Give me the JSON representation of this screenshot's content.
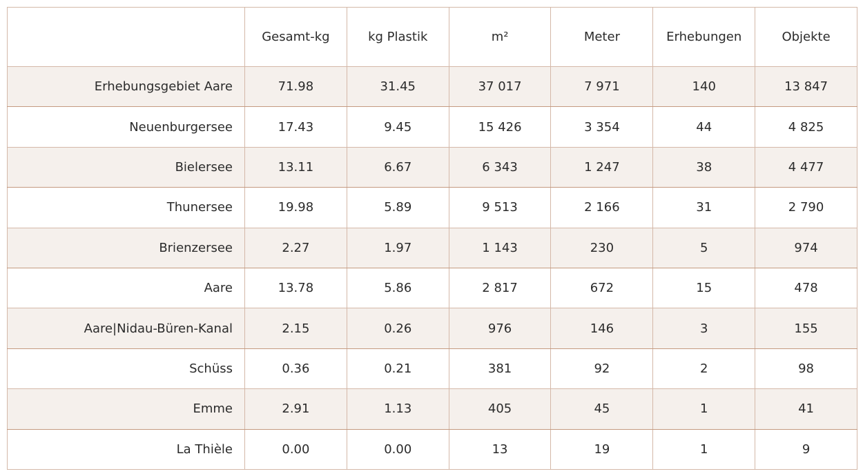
{
  "table": {
    "headers": [
      "",
      "Gesamt-kg",
      "kg Plastik",
      "m²",
      "Meter",
      "Erhebungen",
      "Objekte"
    ],
    "rows": [
      {
        "label": "Erhebungsgebiet Aare",
        "values": [
          "71.98",
          "31.45",
          "37 017",
          "7 971",
          "140",
          "13 847"
        ]
      },
      {
        "label": "Neuenburgersee",
        "values": [
          "17.43",
          "9.45",
          "15 426",
          "3 354",
          "44",
          "4 825"
        ]
      },
      {
        "label": "Bielersee",
        "values": [
          "13.11",
          "6.67",
          "6 343",
          "1 247",
          "38",
          "4 477"
        ]
      },
      {
        "label": "Thunersee",
        "values": [
          "19.98",
          "5.89",
          "9 513",
          "2 166",
          "31",
          "2 790"
        ]
      },
      {
        "label": "Brienzersee",
        "values": [
          "2.27",
          "1.97",
          "1 143",
          "230",
          "5",
          "974"
        ]
      },
      {
        "label": "Aare",
        "values": [
          "13.78",
          "5.86",
          "2 817",
          "672",
          "15",
          "478"
        ]
      },
      {
        "label": "Aare|Nidau-Büren-Kanal",
        "values": [
          "2.15",
          "0.26",
          "976",
          "146",
          "3",
          "155"
        ]
      },
      {
        "label": "Schüss",
        "values": [
          "0.36",
          "0.21",
          "381",
          "92",
          "2",
          "98"
        ]
      },
      {
        "label": "Emme",
        "values": [
          "2.91",
          "1.13",
          "405",
          "45",
          "1",
          "41"
        ]
      },
      {
        "label": "La Thièle",
        "values": [
          "0.00",
          "0.00",
          "13",
          "19",
          "1",
          "9"
        ]
      }
    ]
  },
  "colors": {
    "stripe_background": "#f5f0ec",
    "border": "#d4b8a8",
    "border_strong": "#c49a80",
    "text": "#2b2b2b"
  }
}
